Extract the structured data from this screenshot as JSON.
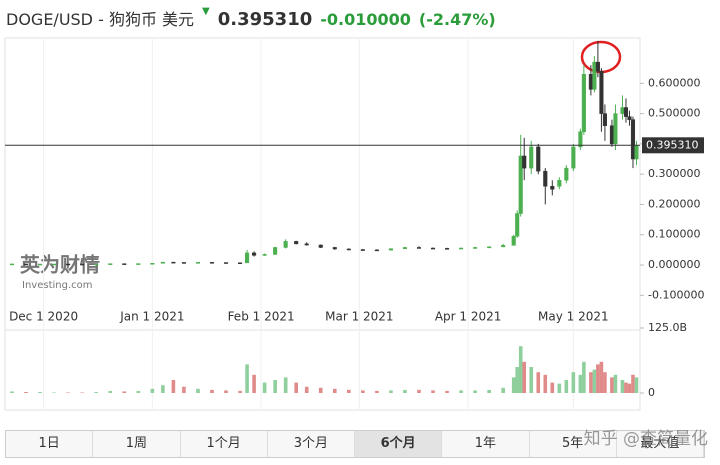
{
  "header": {
    "title": "DOGE/USD - 狗狗币 美元",
    "price": "0.395310",
    "change": "-0.010000",
    "change_pct": "(-2.47%)"
  },
  "chart_data": {
    "type": "candlestick",
    "x": [
      "2020-11-22",
      "2020-11-26",
      "2020-11-30",
      "2020-12-04",
      "2020-12-08",
      "2020-12-12",
      "2020-12-16",
      "2020-12-20",
      "2020-12-24",
      "2020-12-28",
      "2021-01-01",
      "2021-01-04",
      "2021-01-07",
      "2021-01-10",
      "2021-01-14",
      "2021-01-18",
      "2021-01-22",
      "2021-01-26",
      "2021-01-28",
      "2021-01-30",
      "2021-02-02",
      "2021-02-05",
      "2021-02-08",
      "2021-02-11",
      "2021-02-14",
      "2021-02-18",
      "2021-02-22",
      "2021-02-26",
      "2021-03-02",
      "2021-03-06",
      "2021-03-10",
      "2021-03-14",
      "2021-03-18",
      "2021-03-22",
      "2021-03-26",
      "2021-03-30",
      "2021-04-03",
      "2021-04-07",
      "2021-04-11",
      "2021-04-14",
      "2021-04-15",
      "2021-04-16",
      "2021-04-17",
      "2021-04-19",
      "2021-04-21",
      "2021-04-23",
      "2021-04-25",
      "2021-04-27",
      "2021-04-29",
      "2021-05-01",
      "2021-05-03",
      "2021-05-04",
      "2021-05-06",
      "2021-05-07",
      "2021-05-08",
      "2021-05-09",
      "2021-05-10",
      "2021-05-12",
      "2021-05-13",
      "2021-05-15",
      "2021-05-16",
      "2021-05-17",
      "2021-05-18",
      "2021-05-19"
    ],
    "open": [
      0.0035,
      0.0036,
      0.0032,
      0.0033,
      0.0034,
      0.0032,
      0.0031,
      0.0035,
      0.0045,
      0.0042,
      0.0047,
      0.0057,
      0.0095,
      0.0085,
      0.008,
      0.0088,
      0.0082,
      0.0075,
      0.0072,
      0.04,
      0.032,
      0.035,
      0.058,
      0.078,
      0.07,
      0.066,
      0.058,
      0.053,
      0.051,
      0.05,
      0.049,
      0.054,
      0.058,
      0.056,
      0.055,
      0.054,
      0.056,
      0.058,
      0.06,
      0.065,
      0.095,
      0.17,
      0.36,
      0.32,
      0.39,
      0.31,
      0.26,
      0.26,
      0.28,
      0.32,
      0.39,
      0.44,
      0.63,
      0.58,
      0.67,
      0.64,
      0.5,
      0.46,
      0.4,
      0.5,
      0.52,
      0.49,
      0.48,
      0.35
    ],
    "high": [
      0.004,
      0.0038,
      0.0035,
      0.0036,
      0.0035,
      0.0034,
      0.0036,
      0.005,
      0.0048,
      0.005,
      0.006,
      0.01,
      0.0105,
      0.009,
      0.009,
      0.0092,
      0.0085,
      0.008,
      0.05,
      0.045,
      0.038,
      0.06,
      0.085,
      0.08,
      0.075,
      0.068,
      0.06,
      0.055,
      0.053,
      0.052,
      0.055,
      0.06,
      0.062,
      0.058,
      0.057,
      0.058,
      0.06,
      0.062,
      0.07,
      0.1,
      0.18,
      0.43,
      0.42,
      0.41,
      0.4,
      0.32,
      0.28,
      0.29,
      0.33,
      0.4,
      0.45,
      0.66,
      0.66,
      0.69,
      0.74,
      0.65,
      0.53,
      0.48,
      0.53,
      0.56,
      0.55,
      0.51,
      0.49,
      0.41
    ],
    "low": [
      0.0032,
      0.003,
      0.0031,
      0.0032,
      0.0031,
      0.003,
      0.003,
      0.0034,
      0.004,
      0.0041,
      0.0045,
      0.0055,
      0.008,
      0.0075,
      0.0078,
      0.008,
      0.0073,
      0.007,
      0.007,
      0.028,
      0.03,
      0.034,
      0.055,
      0.068,
      0.064,
      0.056,
      0.05,
      0.049,
      0.048,
      0.047,
      0.048,
      0.053,
      0.055,
      0.053,
      0.052,
      0.053,
      0.054,
      0.056,
      0.059,
      0.064,
      0.09,
      0.16,
      0.28,
      0.3,
      0.3,
      0.2,
      0.23,
      0.25,
      0.27,
      0.31,
      0.38,
      0.43,
      0.56,
      0.57,
      0.62,
      0.44,
      0.41,
      0.39,
      0.38,
      0.48,
      0.47,
      0.46,
      0.32,
      0.33
    ],
    "close": [
      0.0036,
      0.0032,
      0.0033,
      0.0034,
      0.0032,
      0.0031,
      0.0035,
      0.0045,
      0.0042,
      0.0047,
      0.0057,
      0.0095,
      0.0085,
      0.008,
      0.0088,
      0.0082,
      0.0075,
      0.0072,
      0.04,
      0.032,
      0.035,
      0.058,
      0.078,
      0.07,
      0.066,
      0.058,
      0.053,
      0.051,
      0.05,
      0.049,
      0.054,
      0.058,
      0.056,
      0.055,
      0.054,
      0.056,
      0.058,
      0.06,
      0.065,
      0.095,
      0.17,
      0.36,
      0.32,
      0.39,
      0.31,
      0.26,
      0.25,
      0.28,
      0.32,
      0.39,
      0.44,
      0.63,
      0.58,
      0.67,
      0.64,
      0.5,
      0.46,
      0.4,
      0.5,
      0.52,
      0.49,
      0.48,
      0.35,
      0.3953
    ],
    "volume": [
      3,
      2,
      2,
      1,
      1,
      1,
      2,
      4,
      3,
      4,
      8,
      15,
      25,
      12,
      8,
      6,
      5,
      4,
      55,
      35,
      20,
      25,
      30,
      20,
      12,
      10,
      8,
      6,
      5,
      4,
      5,
      6,
      6,
      5,
      4,
      5,
      5,
      6,
      10,
      30,
      50,
      90,
      60,
      50,
      40,
      35,
      20,
      18,
      25,
      40,
      35,
      60,
      40,
      45,
      55,
      60,
      40,
      30,
      35,
      25,
      20,
      18,
      35,
      30
    ],
    "colors": {
      "up": "#4caf50",
      "down": "#333333",
      "volume_up": "#8fcf9d",
      "volume_down": "#e08a8a"
    },
    "last_price": {
      "value": 0.39531,
      "label": "0.395310"
    },
    "xlim": [
      "2020-11-20",
      "2021-05-20"
    ],
    "xticks": [
      {
        "value": "2020-12-01",
        "label": "Dec 1 2020"
      },
      {
        "value": "2021-01-01",
        "label": "Jan 1 2021"
      },
      {
        "value": "2021-02-01",
        "label": "Feb 1 2021"
      },
      {
        "value": "2021-03-01",
        "label": "Mar 1 2021"
      },
      {
        "value": "2021-04-01",
        "label": "Apr 1 2021"
      },
      {
        "value": "2021-05-01",
        "label": "May 1 2021"
      }
    ],
    "ylim": [
      -0.132,
      0.743
    ],
    "yticks": [
      {
        "value": -0.1,
        "label": "-0.100000"
      },
      {
        "value": 0,
        "label": "0.000000"
      },
      {
        "value": 0.1,
        "label": "0.100000"
      },
      {
        "value": 0.2,
        "label": "0.200000"
      },
      {
        "value": 0.3,
        "label": "0.300000"
      },
      {
        "value": 0.4,
        "label": "0.400000"
      },
      {
        "value": 0.5,
        "label": "0.500000"
      },
      {
        "value": 0.6,
        "label": "0.600000"
      }
    ],
    "y2lim": [
      0,
      125
    ],
    "y2ticks": [
      0,
      {
        "value": 125,
        "label": "125.0B"
      }
    ]
  },
  "logo": {
    "name": "英为财情",
    "site": "Investing.com"
  },
  "buttons": [
    "1日",
    "1周",
    "1个月",
    "3个月",
    "6个月",
    "1年",
    "5年",
    "最大值"
  ],
  "watermark": "知乎 @查简量化"
}
